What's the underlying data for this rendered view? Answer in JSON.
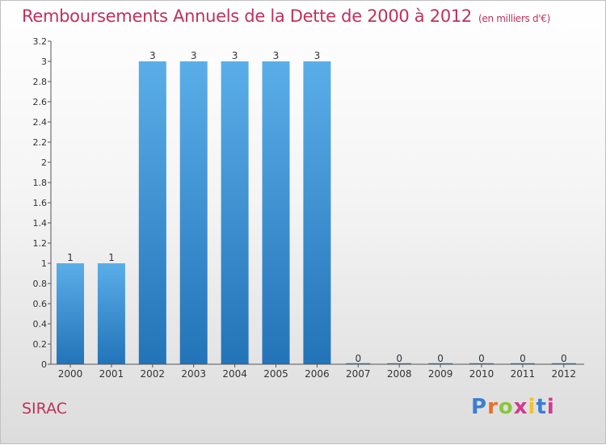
{
  "title": {
    "main": "Remboursements Annuels de la Dette de 2000 à 2012",
    "unit": "(en milliers d'€)"
  },
  "commune": "SIRAC",
  "logo": {
    "text": "Proxiti",
    "colors": [
      "#3a7fd0",
      "#e8702a",
      "#8bc53f",
      "#d23a8c",
      "#f2c12e",
      "#3a7fd0",
      "#d23a8c"
    ]
  },
  "colors": {
    "title": "#c0305a",
    "bar_top": "#5aaee8",
    "bar_bottom": "#2373b8",
    "axis": "#555555"
  },
  "chart_data": {
    "type": "bar",
    "title": "Remboursements Annuels de la Dette de 2000 à 2012",
    "categories": [
      "2000",
      "2001",
      "2002",
      "2003",
      "2004",
      "2005",
      "2006",
      "2007",
      "2008",
      "2009",
      "2010",
      "2011",
      "2012"
    ],
    "values": [
      1,
      1,
      3,
      3,
      3,
      3,
      3,
      0,
      0,
      0,
      0,
      0,
      0
    ],
    "data_labels": [
      "1",
      "1",
      "3",
      "3",
      "3",
      "3",
      "3",
      "0",
      "0",
      "0",
      "0",
      "0",
      "0"
    ],
    "ylim": [
      0,
      3.2
    ],
    "yticks": [
      0,
      0.2,
      0.4,
      0.6,
      0.8,
      1,
      1.2,
      1.4,
      1.6,
      1.8,
      2,
      2.2,
      2.4,
      2.6,
      2.8,
      3,
      3.2
    ],
    "ytick_labels": [
      "0",
      "0.2",
      "0.4",
      "0.6",
      "0.8",
      "1",
      "1.2",
      "1.4",
      "1.6",
      "1.8",
      "2",
      "2.2",
      "2.4",
      "2.6",
      "2.8",
      "3",
      "3.2"
    ],
    "grid": false,
    "legend": "none"
  }
}
